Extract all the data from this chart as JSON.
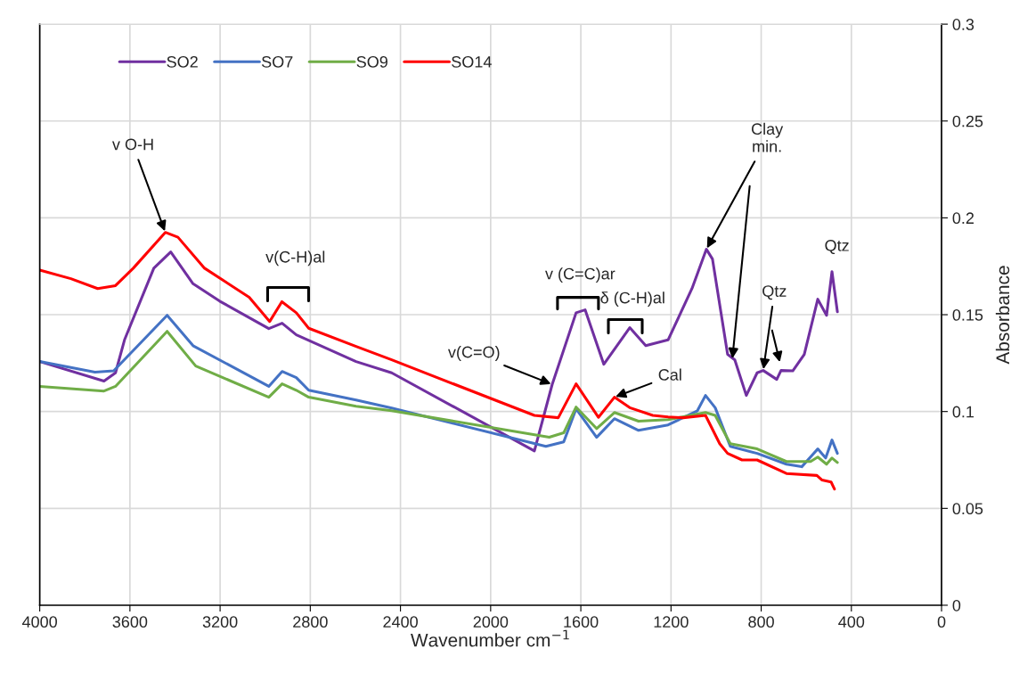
{
  "chart_data": {
    "type": "line",
    "xlabel": "Wavenumber cm$^{−1}$",
    "ylabel": "Absorbance",
    "xlim": [
      4000,
      0
    ],
    "xticks": [
      4000,
      3600,
      3200,
      2800,
      2400,
      2000,
      1600,
      1200,
      800,
      400,
      0
    ],
    "ylim": [
      0,
      0.3
    ],
    "yticks": [
      0,
      0.05,
      0.1,
      0.15,
      0.2,
      0.25,
      0.3
    ],
    "grid": true,
    "legend": "top left",
    "series": [
      {
        "name": "SO2",
        "color": "#7030a0",
        "x": [
          4000,
          3715,
          3664,
          3624,
          3494,
          3419,
          3320,
          3202,
          2984,
          2925,
          2862,
          2597,
          2439,
          1806,
          1727,
          1621,
          1581,
          1498,
          1383,
          1312,
          1213,
          1107,
          1043,
          1016,
          949,
          917,
          866,
          818,
          791,
          731,
          712,
          660,
          609,
          549,
          510,
          486,
          462
        ],
        "values": [
          0.1258,
          0.1157,
          0.12,
          0.137,
          0.174,
          0.1824,
          0.166,
          0.157,
          0.1428,
          0.1456,
          0.1396,
          0.1258,
          0.12,
          0.0797,
          0.114,
          0.151,
          0.1525,
          0.1244,
          0.1433,
          0.134,
          0.137,
          0.1635,
          0.1838,
          0.1787,
          0.1295,
          0.1267,
          0.1083,
          0.12,
          0.1212,
          0.1166,
          0.1212,
          0.121,
          0.1295,
          0.158,
          0.1497,
          0.1722,
          0.1515
        ]
      },
      {
        "name": "SO7",
        "color": "#4472c4",
        "x": [
          4000,
          3755,
          3672,
          3435,
          3320,
          2984,
          2925,
          2862,
          2807,
          2597,
          2439,
          1755,
          1676,
          1621,
          1530,
          1451,
          1344,
          1213,
          1083,
          1047,
          1004,
          937,
          818,
          688,
          620,
          549,
          514,
          486,
          462
        ],
        "values": [
          0.1258,
          0.1203,
          0.121,
          0.1497,
          0.134,
          0.113,
          0.1207,
          0.1175,
          0.111,
          0.106,
          0.1018,
          0.082,
          0.0843,
          0.1014,
          0.0867,
          0.0963,
          0.0903,
          0.0931,
          0.1004,
          0.1083,
          0.102,
          0.082,
          0.0784,
          0.0728,
          0.0715,
          0.0807,
          0.076,
          0.0853,
          0.0784
        ]
      },
      {
        "name": "SO9",
        "color": "#70ad47",
        "x": [
          4000,
          3715,
          3664,
          3435,
          3308,
          2984,
          2925,
          2862,
          2807,
          2597,
          2439,
          1740,
          1676,
          1621,
          1530,
          1451,
          1344,
          1213,
          1047,
          1004,
          937,
          818,
          688,
          581,
          549,
          510,
          486,
          462
        ],
        "values": [
          0.113,
          0.1106,
          0.113,
          0.1414,
          0.1235,
          0.1074,
          0.1143,
          0.111,
          0.1074,
          0.1027,
          0.1004,
          0.0867,
          0.089,
          0.1023,
          0.0912,
          0.0995,
          0.095,
          0.0958,
          0.0995,
          0.098,
          0.0834,
          0.0807,
          0.0742,
          0.0742,
          0.0765,
          0.0728,
          0.076,
          0.0737
        ]
      },
      {
        "name": "SO14",
        "color": "#ff0000",
        "x": [
          4000,
          3862,
          3743,
          3664,
          3585,
          3443,
          3387,
          3269,
          3071,
          2980,
          2926,
          2862,
          2807,
          2597,
          2439,
          1806,
          1700,
          1621,
          1522,
          1451,
          1383,
          1281,
          1213,
          1146,
          1047,
          984,
          949,
          885,
          818,
          688,
          553,
          530,
          490,
          475
        ],
        "values": [
          0.173,
          0.1686,
          0.1635,
          0.165,
          0.174,
          0.1925,
          0.19,
          0.174,
          0.159,
          0.1465,
          0.1567,
          0.151,
          0.143,
          0.1336,
          0.1267,
          0.098,
          0.0968,
          0.1143,
          0.097,
          0.1074,
          0.102,
          0.098,
          0.0972,
          0.0968,
          0.098,
          0.0834,
          0.0784,
          0.075,
          0.075,
          0.068,
          0.067,
          0.0646,
          0.0636,
          0.06
        ]
      }
    ],
    "annotations": [
      {
        "text": "v O-H",
        "x": 3443,
        "y": 0.1925
      },
      {
        "text": "v(C-H)al",
        "x": 2926,
        "y": 0.1567
      },
      {
        "text": "v (C=C)ar",
        "x": 1581,
        "y": 0.1525
      },
      {
        "text": "δ (C-H)al",
        "x": 1383,
        "y": 0.1433
      },
      {
        "text": "v(C=O)",
        "x": 1727,
        "y": 0.114
      },
      {
        "text": "Cal",
        "x": 1451,
        "y": 0.1074
      },
      {
        "text": "Clay\nmin.",
        "x": 1043,
        "y": 0.1838
      },
      {
        "text": "Qtz",
        "x": 791,
        "y": 0.1212
      },
      {
        "text": "Qtz",
        "x": 486,
        "y": 0.1722
      }
    ]
  }
}
